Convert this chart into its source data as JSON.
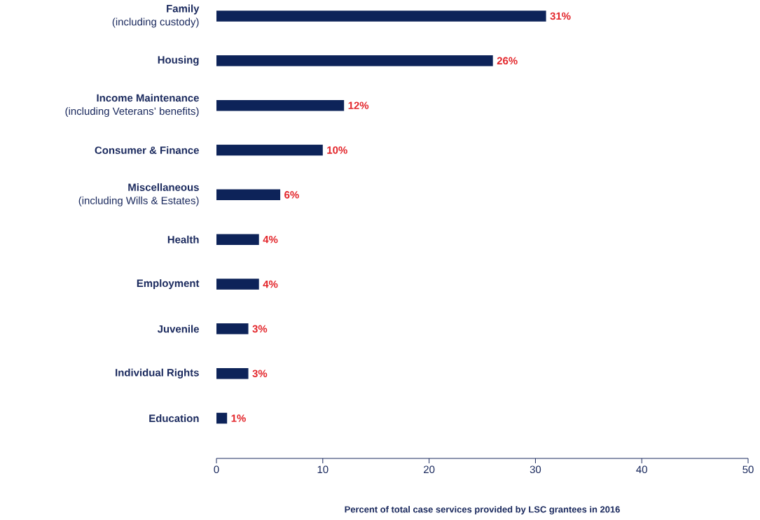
{
  "chart_data": {
    "type": "bar",
    "orientation": "horizontal",
    "xlabel": "Percent of total case services provided by LSC grantees in 2016",
    "categories": [
      "**Family**\n(including custody)",
      "**Housing**",
      "**Income Maintenance**\n(including Veterans’ benefits)",
      "**Consumer & Finance**",
      "**Miscellaneous**\n(including Wills & Estates)",
      "**Health**",
      "**Employment**",
      "**Juvenile**",
      "**Individual Rights**",
      "**Education**"
    ],
    "values": [
      31,
      26,
      12,
      10,
      6,
      4,
      4,
      3,
      3,
      1
    ],
    "value_labels": [
      "31%",
      "26%",
      "12%",
      "10%",
      "6%",
      "4%",
      "4%",
      "3%",
      "3%",
      "1%"
    ],
    "color": "#0d2359",
    "xlim": [
      0,
      50
    ],
    "xticks": [
      0,
      10,
      20,
      30,
      40,
      50
    ],
    "grid": false
  }
}
